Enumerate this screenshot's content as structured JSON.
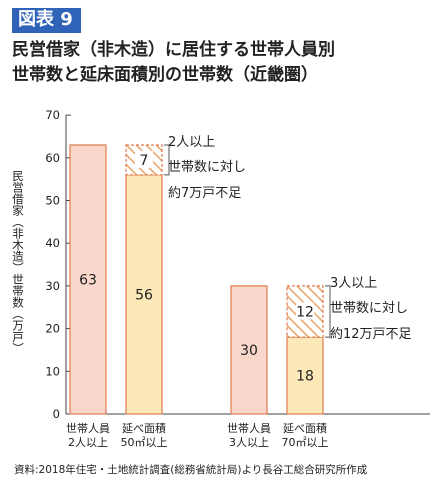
{
  "figure_label": "図表 9",
  "title_line1": "民営借家（非木造）に居住する世帯人員別",
  "title_line2": "世帯数と延床面積別の世帯数（近畿圏）",
  "source": "資料:2018年住宅・土地統計調査(総務省統計局)より長谷工総合研究所作成",
  "colors": {
    "household_bar": "#f9d7ca",
    "area_bar": "#fce9b8",
    "bar_edge": "#e07b4f",
    "shortfall_hatch": "#e8a86f"
  },
  "chart_data": {
    "type": "bar",
    "ylabel": "民営借家（非木造）世帯数（万戸）",
    "ylim": [
      0,
      70
    ],
    "yticks": [
      0,
      10,
      20,
      30,
      40,
      50,
      60,
      70
    ],
    "grid": false,
    "groups": [
      {
        "household": {
          "label_line1": "世帯人員",
          "label_line2": "2人以上",
          "value": 63
        },
        "area": {
          "label_line1": "延べ面積",
          "label_line2": "50㎡以上",
          "value": 56
        },
        "shortfall": {
          "value": 7,
          "note_line1": "2人以上",
          "note_line2": "世帯数に対し",
          "note_line3": "約7万戸不足"
        }
      },
      {
        "household": {
          "label_line1": "世帯人員",
          "label_line2": "3人以上",
          "value": 30
        },
        "area": {
          "label_line1": "延べ面積",
          "label_line2": "70㎡以上",
          "value": 18
        },
        "shortfall": {
          "value": 12,
          "note_line1": "3人以上",
          "note_line2": "世帯数に対し",
          "note_line3": "約12万戸不足"
        }
      }
    ]
  }
}
